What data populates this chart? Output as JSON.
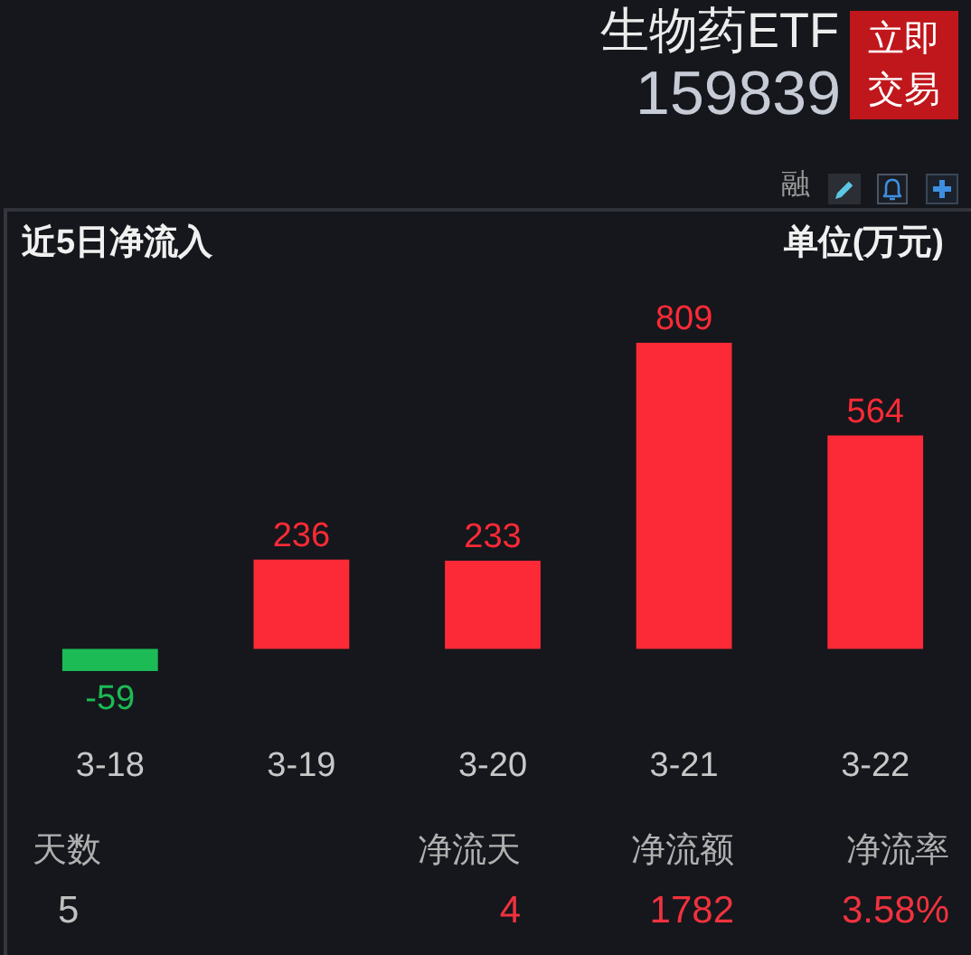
{
  "chart_data": {
    "type": "bar",
    "title": "近5日净流入",
    "ylabel": "单位(万元)",
    "categories": [
      "3-18",
      "3-19",
      "3-20",
      "3-21",
      "3-22"
    ],
    "values": [
      -59,
      236,
      233,
      809,
      564
    ],
    "colors": [
      "#1cbb55",
      "#fc2a36",
      "#fc2a36",
      "#fc2a36",
      "#fc2a36"
    ],
    "data_labels": true,
    "tick_labels": "x",
    "annotations": [
      "生物药ETF",
      "159839",
      "立即交易",
      "融",
      "天数",
      "净流天",
      "净流额",
      "净流率",
      "5",
      "4",
      "1782",
      "3.58%"
    ]
  }
}
